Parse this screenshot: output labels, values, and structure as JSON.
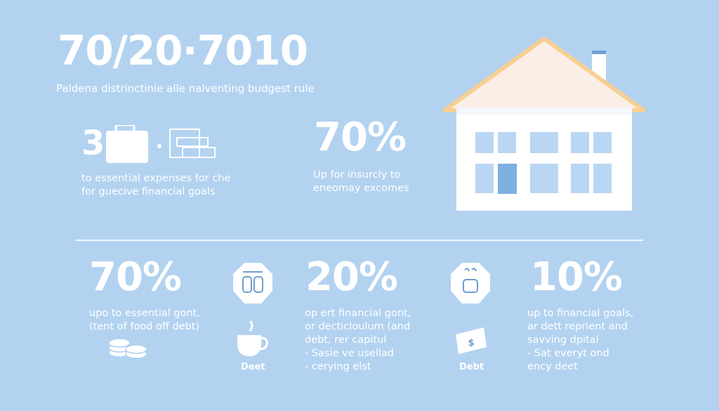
{
  "header": {
    "title": "70/20·7010",
    "subtitle": "Paldena distrinctinie alle nalventing budgest rule"
  },
  "top_section": {
    "left": {
      "number": "3",
      "lines": [
        "to essential expenses for che",
        "for guecive financial goals"
      ]
    },
    "middle": {
      "percent": "70%",
      "lines": [
        "Up for insurcly to",
        "eneomay excomes"
      ]
    }
  },
  "columns": [
    {
      "percent": "70%",
      "lines": [
        "upo to essential gont,",
        "(tent of food off debt)"
      ],
      "icon": "coins-icon"
    },
    {
      "icon_top": "badge-icon",
      "icon_bottom": "coffee-cup-icon",
      "label": "Deet"
    },
    {
      "percent": "20%",
      "lines": [
        "op ert financial gont,",
        "or decticloulum (and",
        "debt, rer capitul"
      ],
      "bullets": [
        "- Sasie ve usellad",
        "- cerying elst"
      ]
    },
    {
      "icon_top": "badge-icon",
      "icon_bottom": "dollar-bill-icon",
      "label": "Debt"
    },
    {
      "percent": "10%",
      "lines": [
        "up to financial goals,",
        "ar dett reprient and",
        "savving dpital"
      ],
      "bullets": [
        "- Sat everyt ond",
        "ency deet"
      ]
    }
  ],
  "colors": {
    "background": "#b2d2f0",
    "roof": "#fbeee6",
    "roof_edge": "#f7cf94",
    "window": "#b9d7f4",
    "door": "#7eafe0",
    "icon_stroke": "#6f9fd0"
  }
}
